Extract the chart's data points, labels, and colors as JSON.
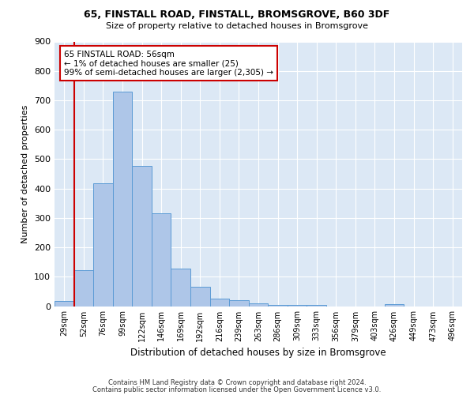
{
  "title1": "65, FINSTALL ROAD, FINSTALL, BROMSGROVE, B60 3DF",
  "title2": "Size of property relative to detached houses in Bromsgrove",
  "xlabel": "Distribution of detached houses by size in Bromsgrove",
  "ylabel": "Number of detached properties",
  "categories": [
    "29sqm",
    "52sqm",
    "76sqm",
    "99sqm",
    "122sqm",
    "146sqm",
    "169sqm",
    "192sqm",
    "216sqm",
    "239sqm",
    "263sqm",
    "286sqm",
    "309sqm",
    "333sqm",
    "356sqm",
    "379sqm",
    "403sqm",
    "426sqm",
    "449sqm",
    "473sqm",
    "496sqm"
  ],
  "bar_heights": [
    18,
    122,
    418,
    730,
    478,
    315,
    128,
    65,
    25,
    20,
    10,
    5,
    5,
    5,
    0,
    0,
    0,
    7,
    0,
    0,
    0
  ],
  "bar_color": "#aec6e8",
  "bar_edge_color": "#5b9bd5",
  "vline_x": 1,
  "vline_color": "#cc0000",
  "annotation_text": "65 FINSTALL ROAD: 56sqm\n← 1% of detached houses are smaller (25)\n99% of semi-detached houses are larger (2,305) →",
  "annotation_box_color": "#ffffff",
  "annotation_box_edge": "#cc0000",
  "ylim": [
    0,
    900
  ],
  "yticks": [
    0,
    100,
    200,
    300,
    400,
    500,
    600,
    700,
    800,
    900
  ],
  "footer1": "Contains HM Land Registry data © Crown copyright and database right 2024.",
  "footer2": "Contains public sector information licensed under the Open Government Licence v3.0.",
  "plot_bg": "#dce8f5"
}
